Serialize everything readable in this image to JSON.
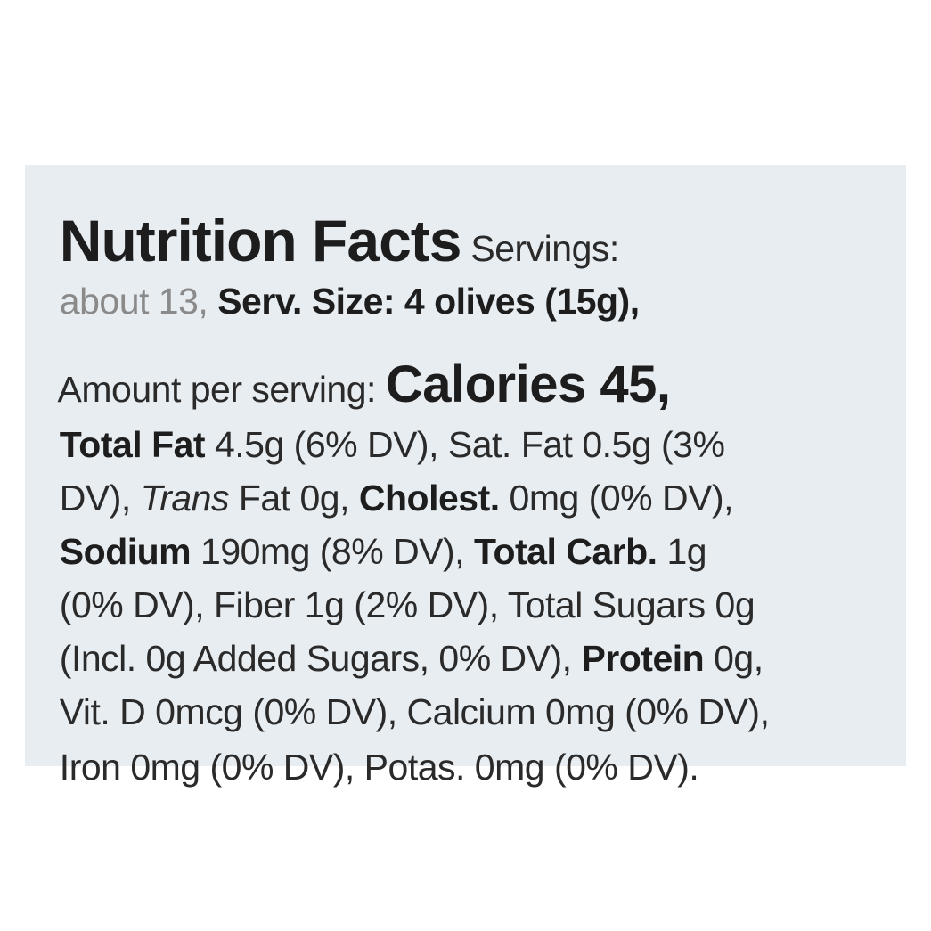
{
  "label": {
    "lines": [
      [
        "Nutrition Facts",
        " Servings:"
      ],
      [
        "about 13, ",
        "Serv. Size: 4 olives (15g),"
      ],
      [
        "Amount per serving: ",
        "Calories 45,"
      ],
      [
        "Total Fat",
        " 4.5g (6% DV), Sat. Fat 0.5g (3%"
      ],
      [
        "DV), ",
        "Trans",
        " Fat 0g, ",
        "Cholest.",
        " 0mg (0% DV),"
      ],
      [
        "Sodium",
        " 190mg (8% DV), ",
        "Total Carb.",
        " 1g"
      ],
      [
        "(0% DV), Fiber 1g (2% DV), Total Sugars 0g"
      ],
      [
        "(Incl. 0g Added Sugars, 0% DV), ",
        "Protein",
        " 0g,"
      ],
      [
        "Vit. D 0mcg (0% DV), Calcium 0mg (0% DV),"
      ],
      [
        "Iron 0mg (0% DV), Potas. 0mg (0% DV)."
      ]
    ]
  }
}
